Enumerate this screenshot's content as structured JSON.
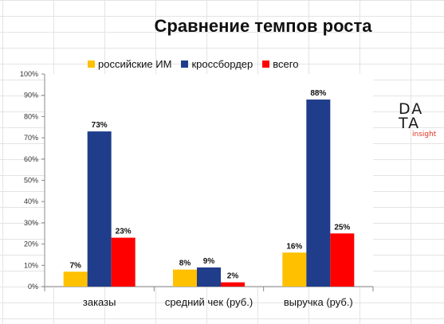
{
  "title": "Сравнение темпов роста",
  "logo": {
    "line1": "DA",
    "line2": "TA",
    "sub": "insight"
  },
  "chart_data": {
    "type": "bar",
    "title": "Сравнение темпов роста",
    "categories": [
      "заказы",
      "средний чек (руб.)",
      "выручка (руб.)"
    ],
    "series": [
      {
        "name": "российские ИМ",
        "color": "#ffc000",
        "values": [
          7,
          8,
          16
        ],
        "labels": [
          "7%",
          "8%",
          "16%"
        ]
      },
      {
        "name": "кроссбордер",
        "color": "#1f3d8a",
        "values": [
          73,
          9,
          88
        ],
        "labels": [
          "73%",
          "9%",
          "88%"
        ]
      },
      {
        "name": "всего",
        "color": "#ff0000",
        "values": [
          23,
          2,
          25
        ],
        "labels": [
          "23%",
          "2%",
          "25%"
        ]
      }
    ],
    "ylim": [
      0,
      100
    ],
    "yticks": [
      "0%",
      "10%",
      "20%",
      "30%",
      "40%",
      "50%",
      "60%",
      "70%",
      "80%",
      "90%",
      "100%"
    ],
    "xlabel": "",
    "ylabel": "",
    "grid": true,
    "legend_position": "top"
  }
}
